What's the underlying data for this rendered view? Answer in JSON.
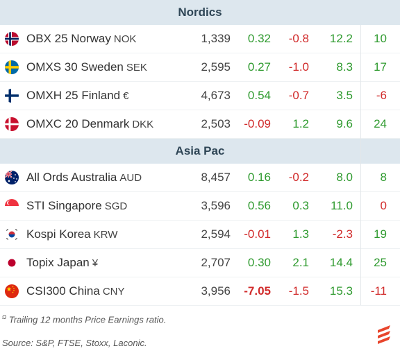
{
  "sections": [
    {
      "title": "Nordics",
      "rows": [
        {
          "name": "OBX 25 Norway",
          "ccy": "NOK",
          "flag": "norway-flag-icon",
          "price": "1,339",
          "v1": "0.32",
          "v1c": "pos",
          "v2": "-0.8",
          "v2c": "neg",
          "v3": "12.2",
          "v3c": "pos",
          "v4": "10",
          "v4c": "pos"
        },
        {
          "name": "OMXS 30 Sweden",
          "ccy": "SEK",
          "flag": "sweden-flag-icon",
          "price": "2,595",
          "v1": "0.27",
          "v1c": "pos",
          "v2": "-1.0",
          "v2c": "neg",
          "v3": "8.3",
          "v3c": "pos",
          "v4": "17",
          "v4c": "pos"
        },
        {
          "name": "OMXH 25 Finland",
          "ccy": "€",
          "flag": "finland-flag-icon",
          "price": "4,673",
          "v1": "0.54",
          "v1c": "pos",
          "v2": "-0.7",
          "v2c": "neg",
          "v3": "3.5",
          "v3c": "pos",
          "v4": "-6",
          "v4c": "neg"
        },
        {
          "name": "OMXC 20 Denmark",
          "ccy": "DKK",
          "flag": "denmark-flag-icon",
          "price": "2,503",
          "v1": "-0.09",
          "v1c": "neg",
          "v2": "1.2",
          "v2c": "pos",
          "v3": "9.6",
          "v3c": "pos",
          "v4": "24",
          "v4c": "pos"
        }
      ]
    },
    {
      "title": "Asia Pac",
      "rows": [
        {
          "name": "All Ords Australia",
          "ccy": "AUD",
          "flag": "australia-flag-icon",
          "price": "8,457",
          "v1": "0.16",
          "v1c": "pos",
          "v2": "-0.2",
          "v2c": "neg",
          "v3": "8.0",
          "v3c": "pos",
          "v4": "8",
          "v4c": "pos"
        },
        {
          "name": "STI Singapore",
          "ccy": "SGD",
          "flag": "singapore-flag-icon",
          "price": "3,596",
          "v1": "0.56",
          "v1c": "pos",
          "v2": "0.3",
          "v2c": "pos",
          "v3": "11.0",
          "v3c": "pos",
          "v4": "0",
          "v4c": "neg"
        },
        {
          "name": "Kospi Korea",
          "ccy": "KRW",
          "flag": "korea-flag-icon",
          "price": "2,594",
          "v1": "-0.01",
          "v1c": "neg",
          "v2": "1.3",
          "v2c": "pos",
          "v3": "-2.3",
          "v3c": "neg",
          "v4": "19",
          "v4c": "pos"
        },
        {
          "name": "Topix Japan",
          "ccy": "¥",
          "flag": "japan-flag-icon",
          "price": "2,707",
          "v1": "0.30",
          "v1c": "pos",
          "v2": "2.1",
          "v2c": "pos",
          "v3": "14.4",
          "v3c": "pos",
          "v4": "25",
          "v4c": "pos"
        },
        {
          "name": "CSI300 China",
          "ccy": "CNY",
          "flag": "china-flag-icon",
          "price": "3,956",
          "v1": "-7.05",
          "v1c": "neg bold",
          "v2": "-1.5",
          "v2c": "neg",
          "v3": "15.3",
          "v3c": "pos",
          "v4": "-11",
          "v4c": "neg"
        }
      ]
    }
  ],
  "footnote_marker": "Ω",
  "footnote": "Trailing 12 months Price Earnings ratio.",
  "source": "Source: S&P, FTSE, Stoxx, Laconic.",
  "colors": {
    "positive": "#2e9a2e",
    "negative": "#d12a2a",
    "header_bg": "#dde7ee",
    "logo": "#e8452c"
  }
}
